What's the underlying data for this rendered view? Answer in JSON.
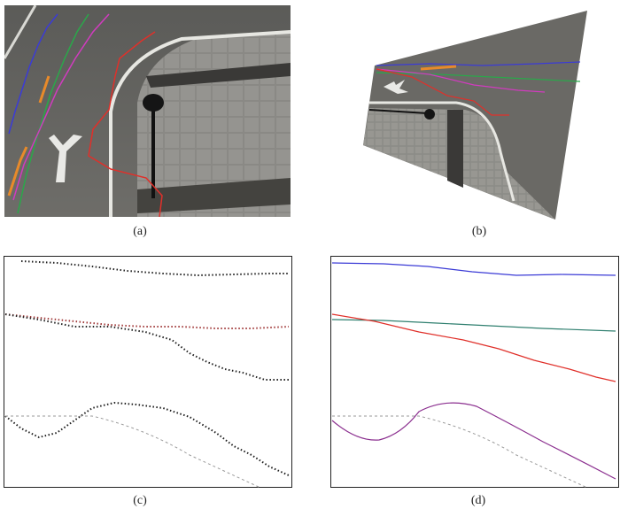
{
  "figure": {
    "captions": [
      "(a)",
      "(b)",
      "(c)",
      "(d)"
    ],
    "panel_descriptions": {
      "a": "photo",
      "b": "photo",
      "c": "plot",
      "d": "plot"
    },
    "colors": {
      "blue": "#3b3bd6",
      "green": "#2aa84a",
      "magenta": "#d13bbf",
      "red": "#e0302a",
      "orange": "#e88a2a",
      "teal": "#2f7f6f",
      "purple": "#8b2f8f",
      "gray_dash": "#9a9a9a",
      "dark": "#1a1a1a"
    }
  }
}
